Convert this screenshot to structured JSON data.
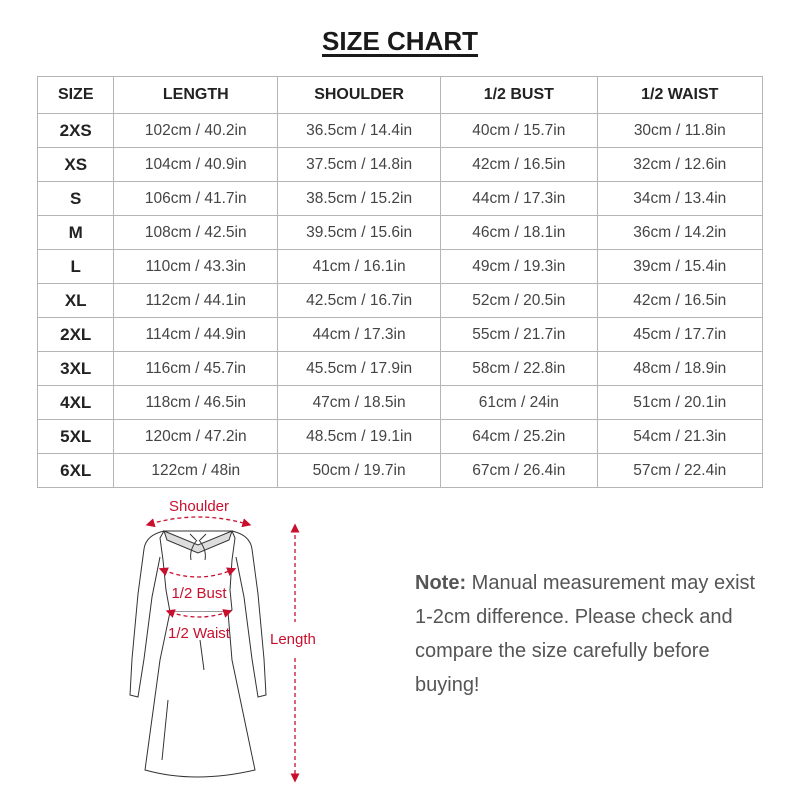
{
  "title": "SIZE CHART",
  "table": {
    "headers": [
      "SIZE",
      "LENGTH",
      "SHOULDER",
      "1/2 BUST",
      "1/2 WAIST"
    ],
    "rows": [
      [
        "2XS",
        "102cm / 40.2in",
        "36.5cm / 14.4in",
        "40cm / 15.7in",
        "30cm / 11.8in"
      ],
      [
        "XS",
        "104cm / 40.9in",
        "37.5cm / 14.8in",
        "42cm / 16.5in",
        "32cm / 12.6in"
      ],
      [
        "S",
        "106cm / 41.7in",
        "38.5cm / 15.2in",
        "44cm / 17.3in",
        "34cm / 13.4in"
      ],
      [
        "M",
        "108cm / 42.5in",
        "39.5cm / 15.6in",
        "46cm / 18.1in",
        "36cm / 14.2in"
      ],
      [
        "L",
        "110cm / 43.3in",
        "41cm / 16.1in",
        "49cm / 19.3in",
        "39cm / 15.4in"
      ],
      [
        "XL",
        "112cm / 44.1in",
        "42.5cm / 16.7in",
        "52cm / 20.5in",
        "42cm / 16.5in"
      ],
      [
        "2XL",
        "114cm / 44.9in",
        "44cm / 17.3in",
        "55cm / 21.7in",
        "45cm / 17.7in"
      ],
      [
        "3XL",
        "116cm / 45.7in",
        "45.5cm / 17.9in",
        "58cm / 22.8in",
        "48cm / 18.9in"
      ],
      [
        "4XL",
        "118cm / 46.5in",
        "47cm / 18.5in",
        "61cm / 24in",
        "51cm / 20.1in"
      ],
      [
        "5XL",
        "120cm / 47.2in",
        "48.5cm / 19.1in",
        "64cm / 25.2in",
        "54cm / 21.3in"
      ],
      [
        "6XL",
        "122cm / 48in",
        "50cm / 19.7in",
        "67cm / 26.4in",
        "57cm / 22.4in"
      ]
    ]
  },
  "diagram": {
    "labels": {
      "shoulder": "Shoulder",
      "bust": "1/2 Bust",
      "waist": "1/2 Waist",
      "length": "Length"
    },
    "accent_color": "#c8102e"
  },
  "note": {
    "label": "Note:",
    "text": " Manual measurement may exist 1-2cm difference. Please check and compare the size carefully before buying!"
  }
}
